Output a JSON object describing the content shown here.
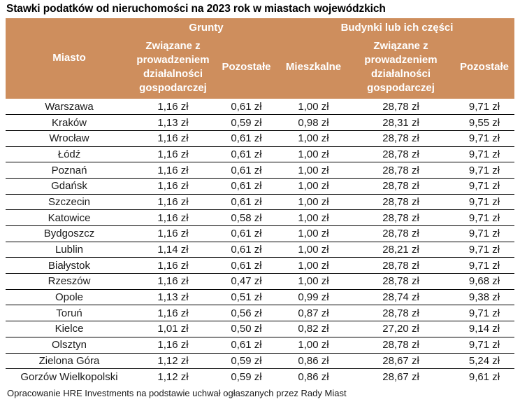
{
  "chart_data": {
    "type": "table",
    "title": "Stawki podatków od nieruchomości na 2023 rok w miastach wojewódzkich",
    "header": {
      "city_label": "Miasto",
      "groups": [
        {
          "label": "Grunty",
          "colspan": 2
        },
        {
          "label": "Budynki lub ich części",
          "colspan": 3
        }
      ],
      "subcolumns": [
        "Związane z prowadzeniem działalności gospodarczej",
        "Pozostałe",
        "Mieszkalne",
        "Związane z prowadzeniem działalności gospodarczej",
        "Pozostałe"
      ]
    },
    "unit": "zł",
    "rows": [
      {
        "city": "Warszawa",
        "values": [
          "1,16 zł",
          "0,61 zł",
          "1,00 zł",
          "28,78 zł",
          "9,71 zł"
        ]
      },
      {
        "city": "Kraków",
        "values": [
          "1,13 zł",
          "0,59 zł",
          "0,98 zł",
          "28,31 zł",
          "9,55 zł"
        ]
      },
      {
        "city": "Wrocław",
        "values": [
          "1,16 zł",
          "0,61 zł",
          "1,00 zł",
          "28,78 zł",
          "9,71 zł"
        ]
      },
      {
        "city": "Łódź",
        "values": [
          "1,16 zł",
          "0,61 zł",
          "1,00 zł",
          "28,78 zł",
          "9,71 zł"
        ]
      },
      {
        "city": "Poznań",
        "values": [
          "1,16 zł",
          "0,61 zł",
          "1,00 zł",
          "28,78 zł",
          "9,71 zł"
        ]
      },
      {
        "city": "Gdańsk",
        "values": [
          "1,16 zł",
          "0,61 zł",
          "1,00 zł",
          "28,78 zł",
          "9,71 zł"
        ]
      },
      {
        "city": "Szczecin",
        "values": [
          "1,16 zł",
          "0,61 zł",
          "1,00 zł",
          "28,78 zł",
          "9,71 zł"
        ]
      },
      {
        "city": "Katowice",
        "values": [
          "1,16 zł",
          "0,58 zł",
          "1,00 zł",
          "28,78 zł",
          "9,71 zł"
        ]
      },
      {
        "city": "Bydgoszcz",
        "values": [
          "1,16 zł",
          "0,61 zł",
          "1,00 zł",
          "28,78 zł",
          "9,71 zł"
        ]
      },
      {
        "city": "Lublin",
        "values": [
          "1,14 zł",
          "0,61 zł",
          "1,00 zł",
          "28,21 zł",
          "9,71 zł"
        ]
      },
      {
        "city": "Białystok",
        "values": [
          "1,16 zł",
          "0,61 zł",
          "1,00 zł",
          "28,78 zł",
          "9,71 zł"
        ]
      },
      {
        "city": "Rzeszów",
        "values": [
          "1,16 zł",
          "0,47 zł",
          "1,00 zł",
          "28,78 zł",
          "9,68 zł"
        ]
      },
      {
        "city": "Opole",
        "values": [
          "1,13 zł",
          "0,51 zł",
          "0,99 zł",
          "28,74 zł",
          "9,38 zł"
        ]
      },
      {
        "city": "Toruń",
        "values": [
          "1,16 zł",
          "0,56 zł",
          "0,87 zł",
          "28,78 zł",
          "9,71 zł"
        ]
      },
      {
        "city": "Kielce",
        "values": [
          "1,01 zł",
          "0,50 zł",
          "0,82 zł",
          "27,20 zł",
          "9,14 zł"
        ]
      },
      {
        "city": "Olsztyn",
        "values": [
          "1,16 zł",
          "0,61 zł",
          "1,00 zł",
          "28,78 zł",
          "9,71 zł"
        ]
      },
      {
        "city": "Zielona Góra",
        "values": [
          "1,12 zł",
          "0,59 zł",
          "0,86 zł",
          "28,67 zł",
          "5,24 zł"
        ]
      },
      {
        "city": "Gorzów Wielkopolski",
        "values": [
          "1,12 zł",
          "0,59 zł",
          "0,86 zł",
          "28,67 zł",
          "9,61 zł"
        ]
      }
    ],
    "source": "Opracowanie HRE Investments na podstawie uchwał ogłaszanych przez Rady Miast"
  },
  "colors": {
    "header_bg": "#ce8e5d",
    "header_text": "#ffffff",
    "title_text": "#000000",
    "cell_text": "#1a1a1a",
    "row_divider": "#000000",
    "page_bg": "#ffffff"
  }
}
